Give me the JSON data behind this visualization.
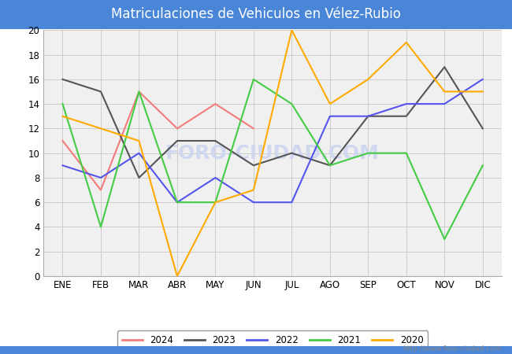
{
  "title": "Matriculaciones de Vehiculos en Vélez-Rubio",
  "title_color": "white",
  "title_bg_color": "#4a86d8",
  "months": [
    "ENE",
    "FEB",
    "MAR",
    "ABR",
    "MAY",
    "JUN",
    "JUL",
    "AGO",
    "SEP",
    "OCT",
    "NOV",
    "DIC"
  ],
  "series": {
    "2024": {
      "color": "#f47c7c",
      "data": [
        11,
        7,
        15,
        12,
        14,
        12,
        null,
        null,
        null,
        null,
        null,
        null
      ]
    },
    "2023": {
      "color": "#555555",
      "data": [
        16,
        15,
        8,
        11,
        11,
        9,
        10,
        9,
        13,
        13,
        17,
        12
      ]
    },
    "2022": {
      "color": "#5555ee",
      "data": [
        9,
        8,
        10,
        6,
        8,
        6,
        6,
        13,
        13,
        14,
        14,
        16
      ]
    },
    "2021": {
      "color": "#44cc44",
      "data": [
        14,
        4,
        15,
        6,
        6,
        16,
        14,
        9,
        10,
        10,
        3,
        9
      ]
    },
    "2020": {
      "color": "#ffaa00",
      "data": [
        13,
        12,
        11,
        0,
        6,
        7,
        20,
        14,
        16,
        19,
        15,
        15
      ]
    }
  },
  "ylim": [
    0,
    20
  ],
  "yticks": [
    0,
    2,
    4,
    6,
    8,
    10,
    12,
    14,
    16,
    18,
    20
  ],
  "grid_color": "#cccccc",
  "plot_bg_color": "#f0f0f0",
  "fig_bg_color": "#ffffff",
  "watermark": "FORO-CIUDAD.COM",
  "watermark_color": "#d0d8f0",
  "url": "http://www.foro-ciudad.com",
  "legend_years": [
    "2024",
    "2023",
    "2022",
    "2021",
    "2020"
  ],
  "linewidth": 1.5
}
